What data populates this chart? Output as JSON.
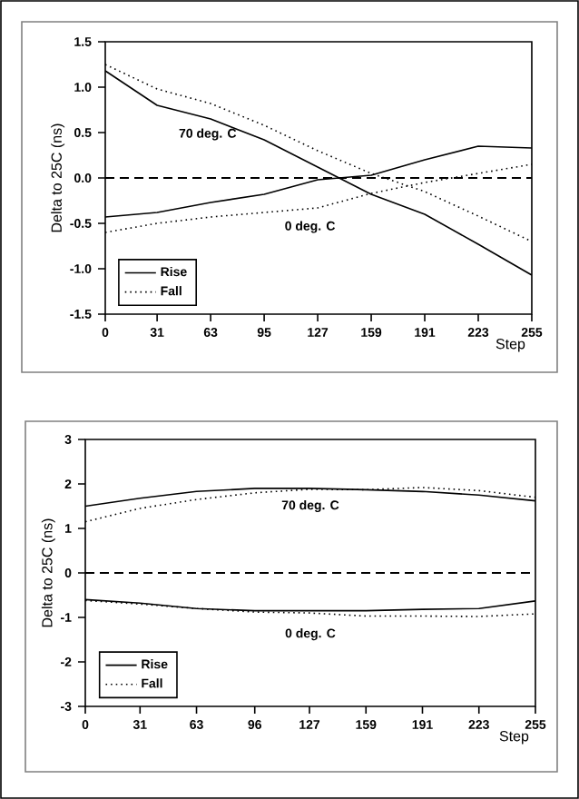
{
  "chart_data": [
    {
      "type": "line",
      "xlabel": "Step",
      "ylabel": "Delta to 25C (ns)",
      "x": [
        0,
        31,
        63,
        95,
        127,
        159,
        191,
        223,
        255
      ],
      "xlim": [
        0,
        255
      ],
      "xticks": [
        0,
        31,
        63,
        95,
        127,
        159,
        191,
        223,
        255
      ],
      "ylim": [
        -1.5,
        1.5
      ],
      "yticks": [
        -1.5,
        {
          "value": -1,
          "label": "-1.0"
        },
        -0.5,
        {
          "value": 0,
          "label": "0.0"
        },
        0.5,
        {
          "value": 1,
          "label": "1.0"
        },
        1.5
      ],
      "legend": "bottom left",
      "series": [
        {
          "name": "Rise",
          "color": "#000000",
          "line_style": "solid",
          "values": [
            1.18,
            0.8,
            0.65,
            0.42,
            0.12,
            -0.18,
            -0.4,
            -0.73,
            -1.07
          ]
        },
        {
          "name": "Fall",
          "color": "#000000",
          "line_style": "dotted",
          "values": [
            1.25,
            0.98,
            0.82,
            0.58,
            0.3,
            0.05,
            -0.15,
            -0.42,
            -0.7
          ]
        },
        {
          "color": "#000000",
          "line_style": "solid",
          "values": [
            -0.43,
            -0.38,
            -0.27,
            -0.18,
            -0.02,
            0.03,
            0.2,
            0.35,
            0.33
          ]
        },
        {
          "color": "#000000",
          "line_style": "dotted",
          "values": [
            -0.6,
            -0.5,
            -0.43,
            -0.38,
            -0.33,
            -0.17,
            -0.05,
            0.05,
            0.15
          ]
        }
      ],
      "ref_lines": [
        {
          "axis": "y",
          "value": 0,
          "line_style": "dashed",
          "color": "#000000"
        }
      ],
      "annotations": [
        "70 deg. C",
        "0 deg. C"
      ]
    },
    {
      "type": "line",
      "xlabel": "Step",
      "ylabel": "Delta to 25C (ns)",
      "x": [
        0,
        31,
        63,
        96,
        127,
        159,
        191,
        223,
        255
      ],
      "xlim": [
        0,
        255
      ],
      "xticks": [
        0,
        31,
        63,
        96,
        127,
        159,
        191,
        223,
        255
      ],
      "ylim": [
        -3,
        3
      ],
      "yticks": [
        -3,
        -2,
        -1,
        0,
        1,
        2,
        3
      ],
      "legend": "bottom left",
      "series": [
        {
          "name": "Rise",
          "color": "#000000",
          "line_style": "solid",
          "values": [
            1.5,
            1.68,
            1.83,
            1.9,
            1.9,
            1.87,
            1.83,
            1.75,
            1.62
          ]
        },
        {
          "name": "Fall",
          "color": "#000000",
          "line_style": "dotted",
          "values": [
            1.15,
            1.45,
            1.65,
            1.8,
            1.88,
            1.87,
            1.92,
            1.85,
            1.7
          ]
        },
        {
          "color": "#000000",
          "line_style": "solid",
          "values": [
            -0.6,
            -0.68,
            -0.8,
            -0.85,
            -0.85,
            -0.85,
            -0.82,
            -0.8,
            -0.63
          ]
        },
        {
          "color": "#000000",
          "line_style": "dotted",
          "values": [
            -0.62,
            -0.7,
            -0.8,
            -0.88,
            -0.9,
            -0.97,
            -0.97,
            -0.98,
            -0.92
          ]
        }
      ],
      "ref_lines": [
        {
          "axis": "y",
          "value": 0,
          "line_style": "dashed",
          "color": "#000000"
        }
      ],
      "annotations": [
        "70 deg. C",
        "0 deg. C"
      ]
    }
  ]
}
